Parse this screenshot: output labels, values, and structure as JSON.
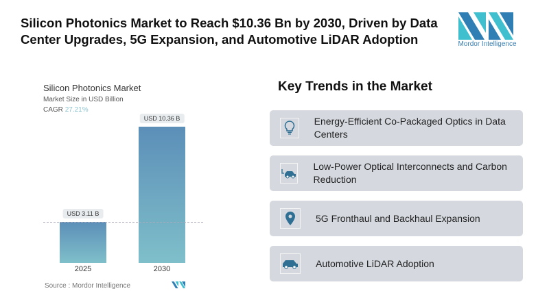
{
  "header": {
    "title": "Silicon Photonics Market to Reach $10.36 Bn by 2030, Driven by Data Center Upgrades, 5G Expansion, and Automotive LiDAR Adoption",
    "logo_text": "Mordor Intelligence"
  },
  "chart_data": {
    "type": "bar",
    "title": "Silicon Photonics Market",
    "subtitle": "Market Size in USD Billion",
    "cagr_label": "CAGR",
    "cagr_value": "27.21%",
    "categories": [
      "2025",
      "2030"
    ],
    "values": [
      3.11,
      10.36
    ],
    "data_labels": [
      "USD 3.11 B",
      "USD 10.36 B"
    ],
    "colors": {
      "bar_top": "#5c8fb8",
      "bar_bottom": "#7fbfca"
    },
    "source": "Source :  Mordor Intelligence"
  },
  "trends": {
    "heading": "Key Trends in the Market",
    "items": [
      {
        "icon": "lightbulb-icon",
        "text": "Energy-Efficient Co-Packaged Optics in Data Centers"
      },
      {
        "icon": "electric-car-icon",
        "text": "Low-Power Optical Interconnects and Carbon Reduction"
      },
      {
        "icon": "location-pin-icon",
        "text": "5G Fronthaul and Backhaul Expansion"
      },
      {
        "icon": "car-icon",
        "text": "Automotive LiDAR Adoption"
      }
    ]
  }
}
